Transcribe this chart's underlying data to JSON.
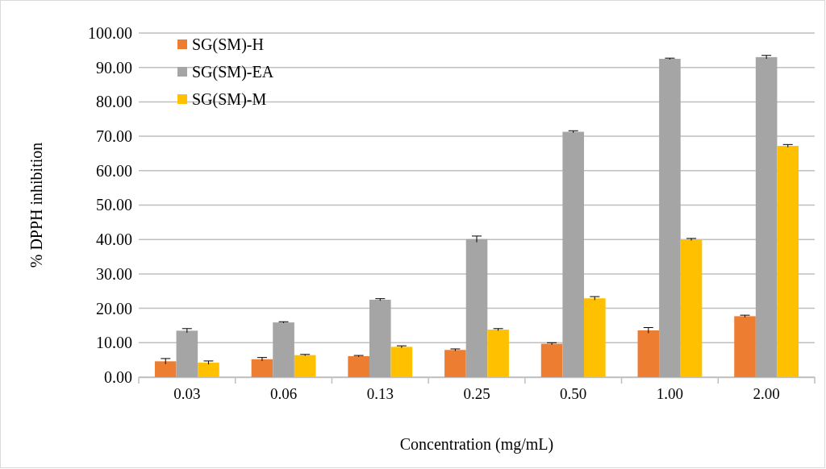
{
  "chart_data": {
    "type": "bar",
    "xlabel": "Concentration (mg/mL)",
    "ylabel": "% DPPH inhibition",
    "categories": [
      "0.03",
      "0.06",
      "0.13",
      "0.25",
      "0.50",
      "1.00",
      "2.00"
    ],
    "series": [
      {
        "name": "SG(SM)-H",
        "color": "#ed7d31",
        "values": [
          4.6,
          5.2,
          6.1,
          7.9,
          9.7,
          13.6,
          17.7
        ],
        "errors": [
          0.8,
          0.5,
          0.2,
          0.3,
          0.3,
          0.8,
          0.3
        ]
      },
      {
        "name": "SG(SM)-EA",
        "color": "#a5a5a5",
        "values": [
          13.5,
          15.9,
          22.5,
          40.1,
          71.3,
          92.5,
          93.0
        ],
        "errors": [
          0.6,
          0.2,
          0.3,
          0.9,
          0.3,
          0.2,
          0.5
        ]
      },
      {
        "name": "SG(SM)-M",
        "color": "#ffc000",
        "values": [
          4.2,
          6.4,
          8.8,
          13.8,
          22.9,
          40.0,
          67.2
        ],
        "errors": [
          0.5,
          0.2,
          0.3,
          0.3,
          0.5,
          0.3,
          0.4
        ]
      }
    ],
    "ylim": [
      0,
      100
    ],
    "yticks": [
      {
        "value": 0,
        "label": "0.00"
      },
      {
        "value": 10,
        "label": "10.00"
      },
      {
        "value": 20,
        "label": "20.00"
      },
      {
        "value": 30,
        "label": "30.00"
      },
      {
        "value": 40,
        "label": "40.00"
      },
      {
        "value": 50,
        "label": "50.00"
      },
      {
        "value": 60,
        "label": "60.00"
      },
      {
        "value": 70,
        "label": "70.00"
      },
      {
        "value": 80,
        "label": "80.00"
      },
      {
        "value": 90,
        "label": "90.00"
      },
      {
        "value": 100,
        "label": "100.00"
      }
    ],
    "grid": "y",
    "legend": "top left"
  }
}
